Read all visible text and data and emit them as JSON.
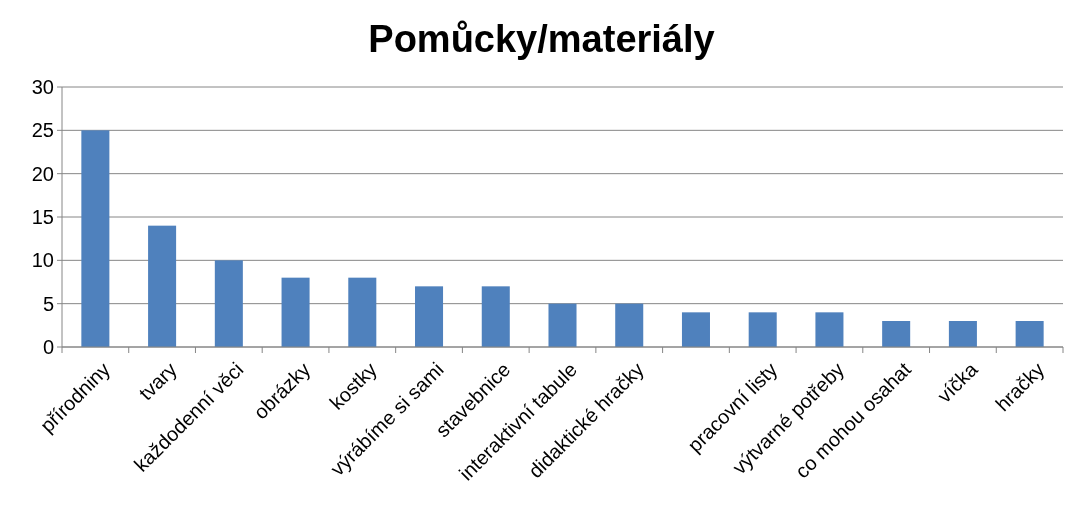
{
  "chart_data": {
    "type": "bar",
    "title": "Pomůcky/materiály",
    "categories": [
      "přírodniny",
      "tvary",
      "každodenní věci",
      "obrázky",
      "kostky",
      "výrábíme si sami",
      "stavebnice",
      "interaktivní tabule",
      "didaktické hračky",
      null,
      "pracovní listy",
      "výtvarné potřeby",
      "co mohou osahat",
      "víčka",
      "hračky"
    ],
    "values": [
      25,
      14,
      10,
      8,
      8,
      7,
      7,
      5,
      5,
      4,
      4,
      4,
      3,
      3,
      3
    ],
    "color": "#4f81bd",
    "ylim": [
      0,
      30
    ],
    "yticks": [
      0,
      5,
      10,
      15,
      20,
      25,
      30
    ],
    "grid": "y"
  }
}
